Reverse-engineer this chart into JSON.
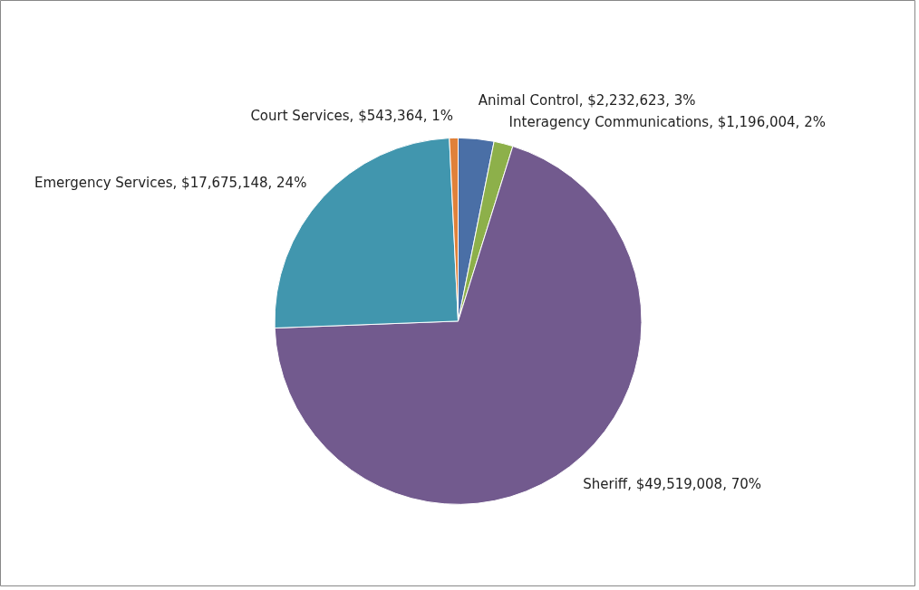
{
  "chart_data": {
    "type": "pie",
    "categories": [
      "Animal Control",
      "Interagency Communications",
      "Sheriff",
      "Emergency Services",
      "Court Services"
    ],
    "values": [
      2232623,
      1196004,
      49519008,
      17675148,
      543364
    ],
    "value_labels": [
      "$2,232,623, 3%",
      "$1,196,004, 2%",
      "$49,519,008, 70%",
      "$17,675,148, 24%",
      "$543,364, 1%"
    ],
    "colors": [
      "#4a6fa6",
      "#8db04a",
      "#725a8e",
      "#4196ae",
      "#e0813a"
    ],
    "legend": false
  }
}
